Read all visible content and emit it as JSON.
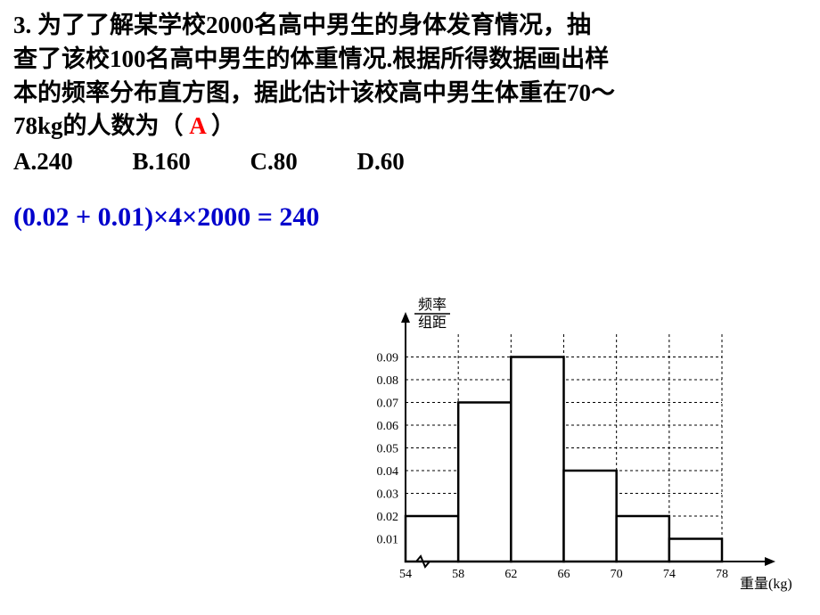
{
  "question": {
    "number": "3.",
    "text_line1": "为了了解某学校2000名高中男生的身体发育情况，抽",
    "text_line2": "查了该校100名高中男生的体重情况.根据所得数据画出样",
    "text_line3": "本的频率分布直方图，据此估计该校高中男生体重在70～",
    "text_line4": "78kg的人数为（",
    "text_line4_end": "）",
    "answer": "A"
  },
  "options": {
    "a": "A.240",
    "b": "B.160",
    "c": "C.80",
    "d": "D.60"
  },
  "formula": "(0.02 + 0.01)×4×2000 = 240",
  "chart": {
    "type": "histogram",
    "y_label_top": "频率",
    "y_label_bottom": "组距",
    "x_label": "重量(kg)",
    "x_ticks": [
      54,
      58,
      62,
      66,
      70,
      74,
      78
    ],
    "y_ticks": [
      0.01,
      0.02,
      0.03,
      0.04,
      0.05,
      0.06,
      0.07,
      0.08,
      0.09
    ],
    "bars": [
      {
        "x_start": 54,
        "x_end": 58,
        "height": 0.02
      },
      {
        "x_start": 58,
        "x_end": 62,
        "height": 0.07
      },
      {
        "x_start": 62,
        "x_end": 66,
        "height": 0.09
      },
      {
        "x_start": 66,
        "x_end": 70,
        "height": 0.04
      },
      {
        "x_start": 70,
        "x_end": 74,
        "height": 0.02
      },
      {
        "x_start": 74,
        "x_end": 78,
        "height": 0.01
      }
    ],
    "bin_width": 4,
    "y_max": 0.09,
    "bar_fill": "#ffffff",
    "bar_stroke": "#000000",
    "bar_stroke_width": 2.5,
    "grid_stroke": "#000000",
    "grid_dash": "3,3",
    "axis_stroke": "#000000",
    "axis_width": 2,
    "font_size_tick": 14,
    "font_size_label": 16
  }
}
